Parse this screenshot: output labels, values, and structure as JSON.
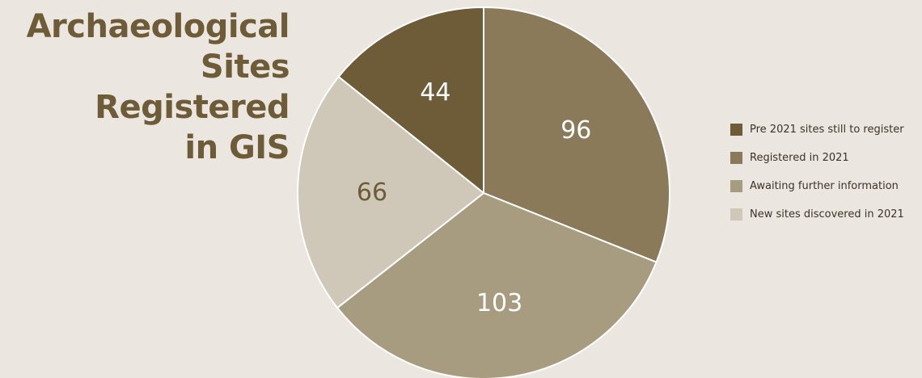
{
  "chart_data": {
    "type": "pie",
    "title": "Archaeological\nSites Registered\nin GIS",
    "categories": [
      "Pre 2021 sites still to register",
      "Registered in 2021",
      "Awaiting further information",
      "New sites discovered in 2021"
    ],
    "values": [
      44,
      96,
      103,
      66
    ],
    "colors": [
      "#6d5c37",
      "#8a7a59",
      "#a89c80",
      "#cfc7b7"
    ],
    "label_colors": [
      "#ffffff",
      "#ffffff",
      "#ffffff",
      "#6d5c37"
    ],
    "slice_order": [
      "Pre 2021 sites still to register",
      "Registered in 2021",
      "Awaiting further information",
      "New sites discovered in 2021"
    ],
    "start_angle": "top, clockwise with first slice ending at 12 o'clock",
    "legend_position": "right"
  }
}
